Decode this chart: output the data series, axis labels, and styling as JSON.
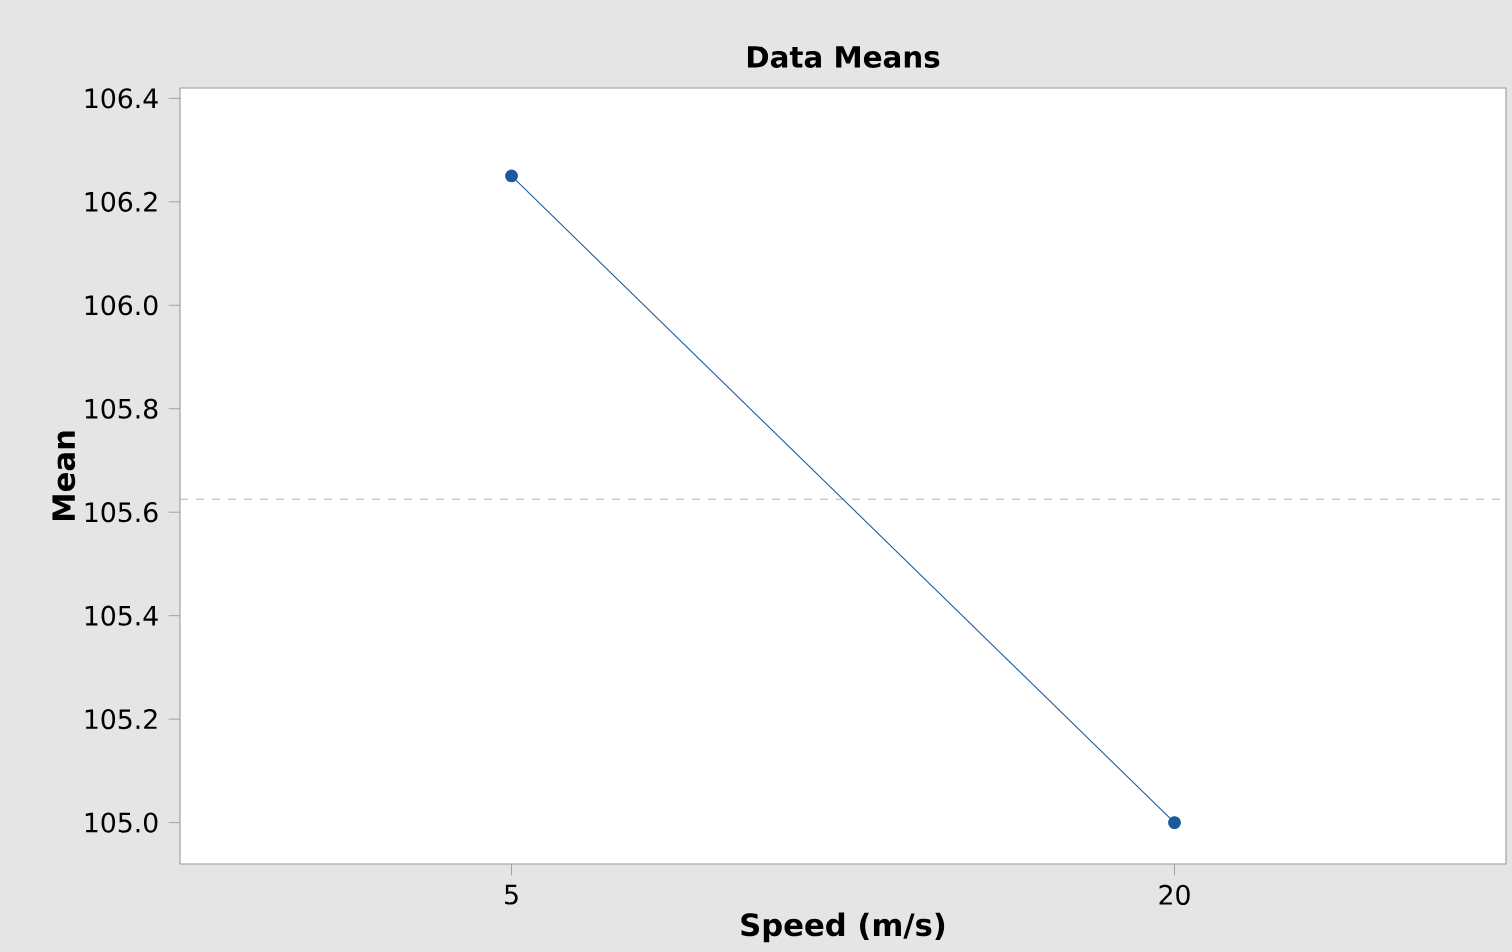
{
  "chart_data": {
    "type": "line",
    "title": "Data Means",
    "xlabel": "Speed (m/s)",
    "ylabel": "Mean",
    "categories": [
      "5",
      "20"
    ],
    "series": [
      {
        "color": "#1a5a9a",
        "values": [
          106.25,
          105.0
        ]
      }
    ],
    "ylim": [
      104.92,
      106.42
    ],
    "yticks": [
      {
        "value": 105.0,
        "label": "105.0"
      },
      {
        "value": 105.2,
        "label": "105.2"
      },
      {
        "value": 105.4,
        "label": "105.4"
      },
      {
        "value": 105.6,
        "label": "105.6"
      },
      {
        "value": 105.8,
        "label": "105.8"
      },
      {
        "value": 106.0,
        "label": "106.0"
      },
      {
        "value": 106.2,
        "label": "106.2"
      },
      {
        "value": 106.4,
        "label": "106.4"
      }
    ],
    "ref_lines": [
      {
        "axis": "y",
        "value": 105.625,
        "color": "#b4b4b4",
        "line_style": "dashed"
      }
    ],
    "marker": "circle",
    "line_style": "solid",
    "grid": false
  }
}
